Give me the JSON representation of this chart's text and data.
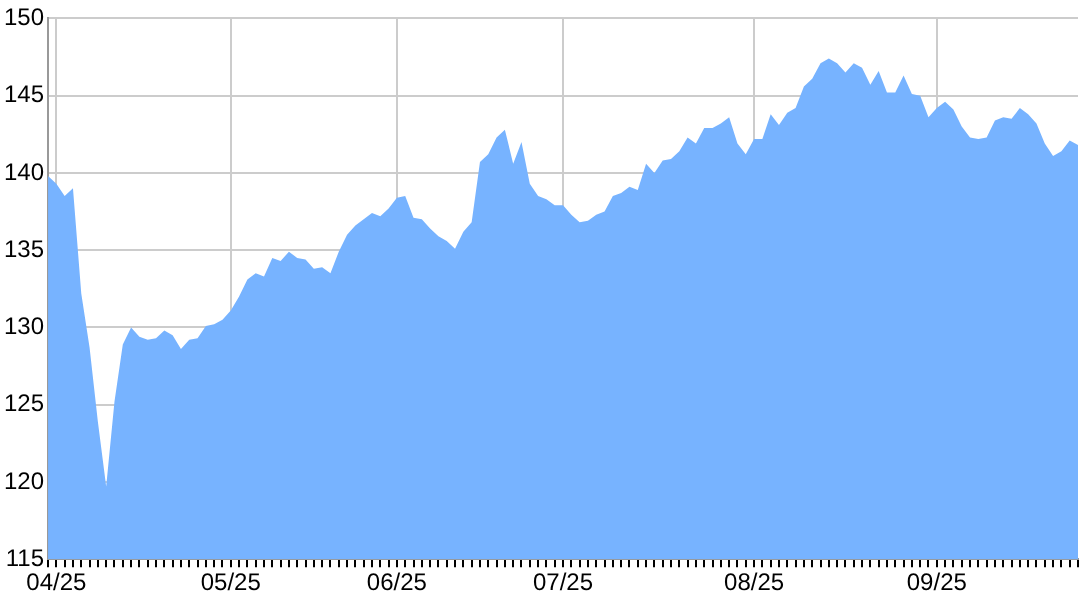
{
  "chart_data": {
    "type": "area",
    "categories": [
      null,
      "04/25",
      null,
      null,
      null,
      null,
      null,
      null,
      null,
      null,
      null,
      null,
      null,
      null,
      null,
      null,
      null,
      null,
      null,
      null,
      null,
      null,
      "05/25",
      null,
      null,
      null,
      null,
      null,
      null,
      null,
      null,
      null,
      null,
      null,
      null,
      null,
      null,
      null,
      null,
      null,
      null,
      null,
      "06/25",
      null,
      null,
      null,
      null,
      null,
      null,
      null,
      null,
      null,
      null,
      null,
      null,
      null,
      null,
      null,
      null,
      null,
      null,
      null,
      "07/25",
      null,
      null,
      null,
      null,
      null,
      null,
      null,
      null,
      null,
      null,
      null,
      null,
      null,
      null,
      null,
      null,
      null,
      null,
      null,
      null,
      null,
      null,
      "08/25",
      null,
      null,
      null,
      null,
      null,
      null,
      null,
      null,
      null,
      null,
      null,
      null,
      null,
      null,
      null,
      null,
      null,
      null,
      null,
      null,
      null,
      "09/25",
      null,
      null,
      null,
      null,
      null,
      null,
      null,
      null,
      null,
      null,
      null,
      null,
      null,
      null,
      null,
      null,
      null
    ],
    "series": [
      {
        "color": "#77b3ff",
        "values": [
          139.8,
          139.3,
          138.5,
          139.0,
          132.2,
          128.7,
          123.9,
          119.7,
          125.2,
          128.9,
          130.0,
          129.4,
          129.2,
          129.3,
          129.8,
          129.5,
          128.6,
          129.2,
          129.3,
          130.1,
          130.2,
          130.5,
          131.1,
          132.0,
          133.1,
          133.5,
          133.3,
          134.5,
          134.3,
          134.9,
          134.5,
          134.4,
          133.8,
          133.9,
          133.5,
          134.9,
          136.0,
          136.6,
          137.0,
          137.4,
          137.2,
          137.7,
          138.4,
          138.5,
          137.1,
          137.0,
          136.4,
          135.9,
          135.6,
          135.1,
          136.2,
          136.8,
          140.7,
          141.2,
          142.3,
          142.8,
          140.6,
          142.0,
          139.3,
          138.5,
          138.3,
          137.9,
          137.9,
          137.3,
          136.8,
          136.9,
          137.3,
          137.5,
          138.5,
          138.7,
          139.1,
          138.9,
          140.6,
          140.0,
          140.8,
          140.9,
          141.4,
          142.3,
          141.9,
          142.9,
          142.9,
          143.2,
          143.6,
          141.9,
          141.2,
          142.2,
          142.2,
          143.8,
          143.1,
          143.9,
          144.2,
          145.6,
          146.1,
          147.1,
          147.4,
          147.1,
          146.5,
          147.1,
          146.8,
          145.7,
          146.6,
          145.2,
          145.2,
          146.3,
          145.1,
          145.0,
          143.6,
          144.2,
          144.6,
          144.1,
          143.0,
          142.3,
          142.2,
          142.3,
          143.4,
          143.6,
          143.5,
          144.2,
          143.8,
          143.2,
          141.9,
          141.1,
          141.4,
          142.1,
          141.8
        ]
      }
    ],
    "ylim": [
      115,
      150
    ],
    "yticks": [
      115,
      120,
      125,
      130,
      135,
      140,
      145,
      150
    ],
    "grid": true
  }
}
